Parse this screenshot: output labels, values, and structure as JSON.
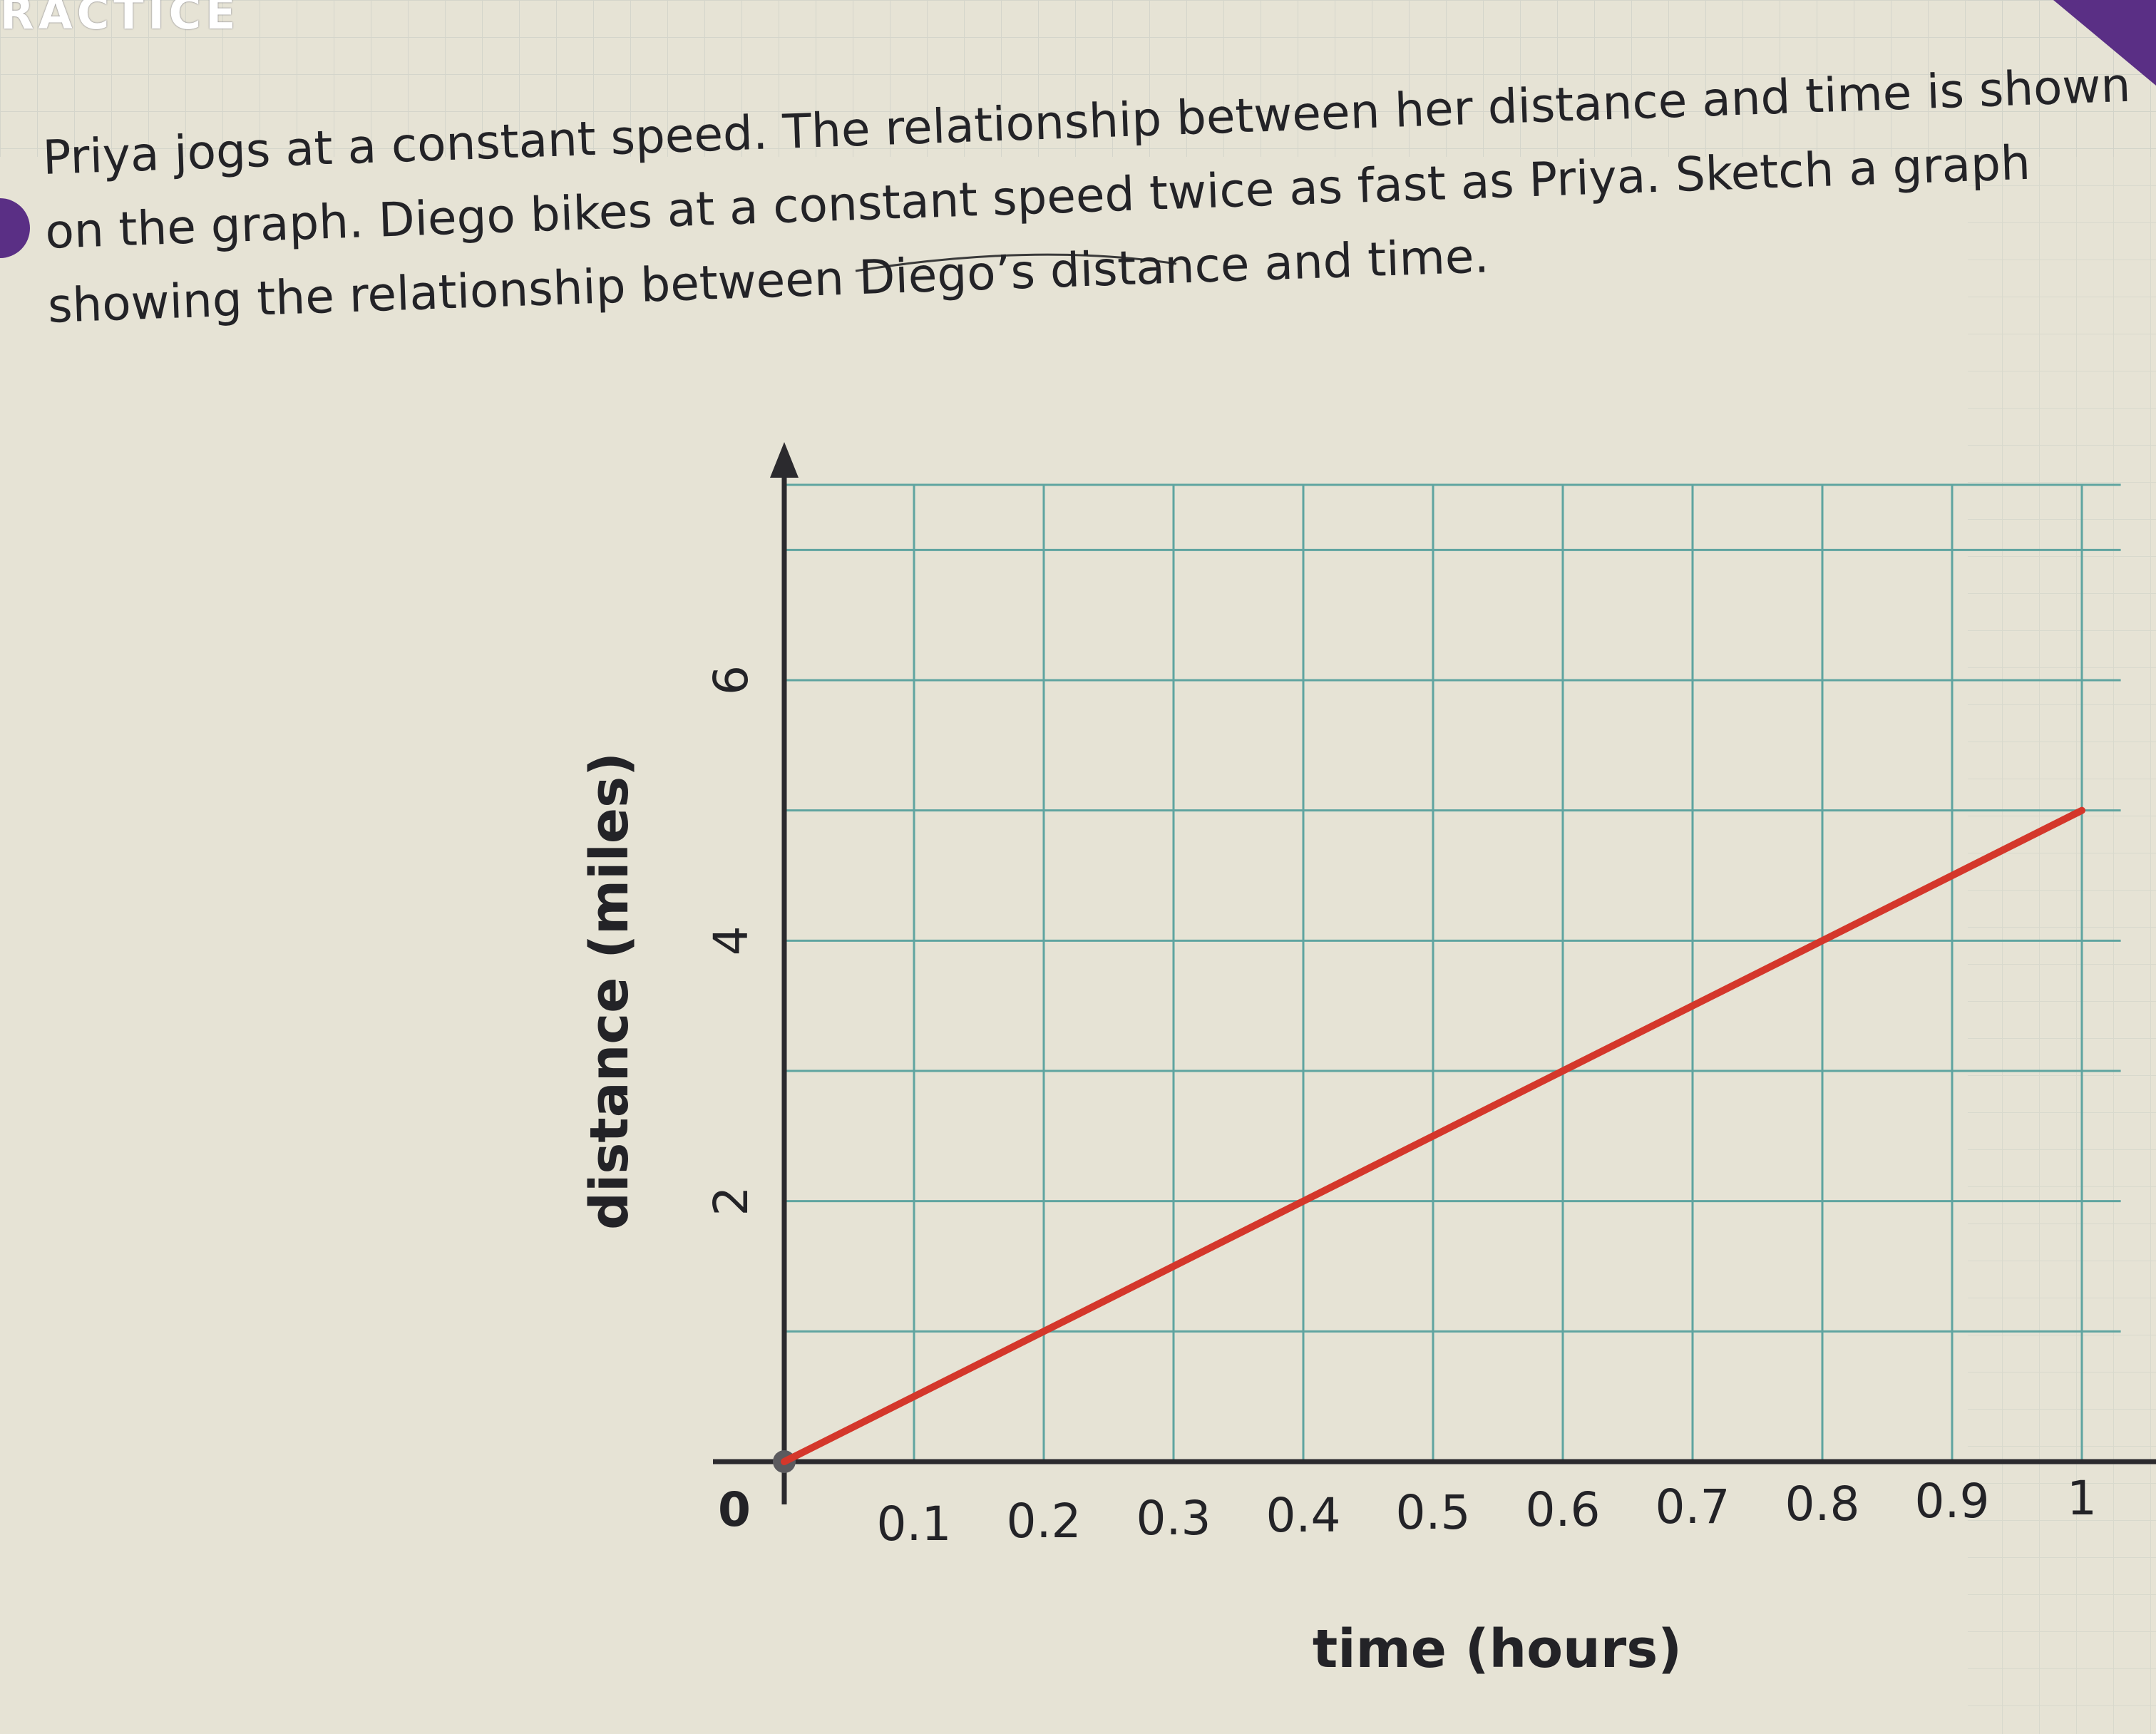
{
  "header": {
    "label": "RACTICE"
  },
  "problem": {
    "lines": [
      "Priya jogs at a constant speed. The relationship between her distance and time is shown",
      "on the graph. Diego bikes at a constant speed twice as fast as Priya. Sketch a graph",
      "showing the relationship between Diego’s distance and time."
    ]
  },
  "colors": {
    "paper": "#e7e4d6",
    "grid": "#5fa4a0",
    "axis": "#2b2a2e",
    "series": "#d4372b",
    "purple_tab": "#5a2f85"
  },
  "chart_data": {
    "type": "line",
    "title": "",
    "xlabel": "time (hours)",
    "ylabel": "distance (miles)",
    "xlim": [
      0,
      1
    ],
    "ylim": [
      0,
      7.5
    ],
    "x_ticks": [
      "0.1",
      "0.2",
      "0.3",
      "0.4",
      "0.5",
      "0.6",
      "0.7",
      "0.8",
      "0.9",
      "1"
    ],
    "y_ticks": [
      "2",
      "4",
      "6"
    ],
    "origin_label": "0",
    "grid": true,
    "series": [
      {
        "color": "#d4372b",
        "x": [
          0,
          0.2,
          0.4,
          0.6,
          0.8,
          1.0
        ],
        "y": [
          0,
          1,
          2,
          3,
          4,
          5
        ]
      }
    ]
  }
}
